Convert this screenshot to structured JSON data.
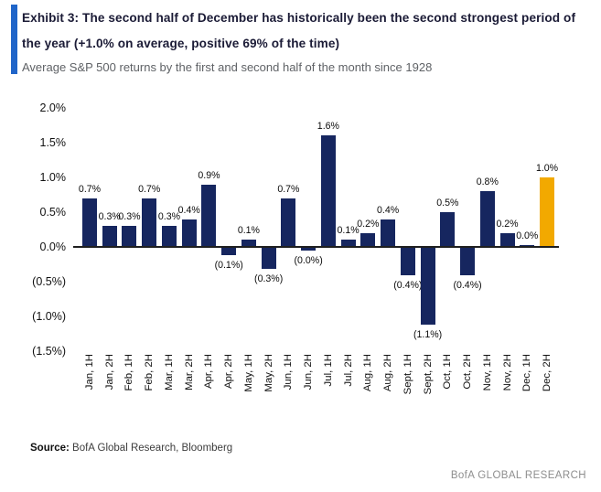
{
  "header": {
    "exhibit_title": "Exhibit 3: The second half of December has historically been the second strongest period of the year (+1.0% on average, positive 69% of the time)",
    "subtitle": "Average S&P 500 returns by the first and second half of the month since 1928"
  },
  "chart_data": {
    "type": "bar",
    "title": "Average S&P 500 returns by the first and second half of the month since 1928",
    "categories": [
      "Jan, 1H",
      "Jan, 2H",
      "Feb, 1H",
      "Feb, 2H",
      "Mar, 1H",
      "Mar, 2H",
      "Apr, 1H",
      "Apr, 2H",
      "May, 1H",
      "May, 2H",
      "Jun, 1H",
      "Jun, 2H",
      "Jul, 1H",
      "Jul, 2H",
      "Aug, 1H",
      "Aug, 2H",
      "Sept, 1H",
      "Sept, 2H",
      "Oct, 1H",
      "Oct, 2H",
      "Nov, 1H",
      "Nov, 2H",
      "Dec, 1H",
      "Dec, 2H"
    ],
    "values": [
      0.7,
      0.3,
      0.3,
      0.7,
      0.3,
      0.4,
      0.9,
      -0.1,
      0.1,
      -0.3,
      0.7,
      -0.0,
      1.6,
      0.1,
      0.2,
      0.4,
      -0.4,
      -1.1,
      0.5,
      -0.4,
      0.8,
      0.2,
      0.0,
      1.0
    ],
    "labels": [
      "0.7%",
      "0.3%",
      "0.3%",
      "0.7%",
      "0.3%",
      "0.4%",
      "0.9%",
      "(0.1%)",
      "0.1%",
      "(0.3%)",
      "0.7%",
      "(0.0%)",
      "1.6%",
      "0.1%",
      "0.2%",
      "0.4%",
      "(0.4%)",
      "(1.1%)",
      "0.5%",
      "(0.4%)",
      "0.8%",
      "0.2%",
      "0.0%",
      "1.0%"
    ],
    "y_ticks": [
      "2.0%",
      "1.5%",
      "1.0%",
      "0.5%",
      "0.0%",
      "(0.5%)",
      "(1.0%)",
      "(1.5%)"
    ],
    "y_tick_values": [
      2.0,
      1.5,
      1.0,
      0.5,
      0.0,
      -0.5,
      -1.0,
      -1.5
    ],
    "ylim": [
      -1.5,
      2.0
    ],
    "xlabel": "",
    "ylabel": "",
    "grid": "off",
    "legend": "none",
    "bar_color": "#16265F",
    "highlight_index": 23,
    "highlight_color": "#F2A900"
  },
  "footer": {
    "source_label": "Source:",
    "source_text": " BofA Global Research, Bloomberg",
    "brand": "BofA GLOBAL RESEARCH"
  }
}
